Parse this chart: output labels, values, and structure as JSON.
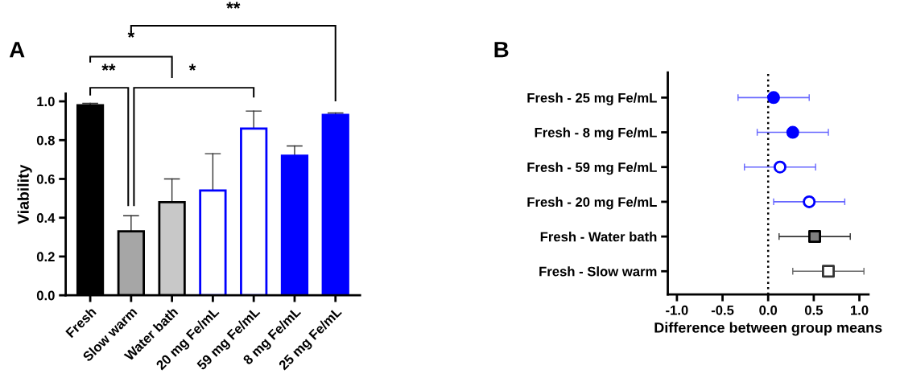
{
  "chart_data": [
    {
      "type": "bar",
      "title": "A",
      "ylabel": "Viability",
      "categories": [
        "Fresh",
        "Slow warm",
        "Water bath",
        "20 mg Fe/mL",
        "59 mg Fe/mL",
        "8 mg Fe/mL",
        "25 mg Fe/mL"
      ],
      "values": [
        0.98,
        0.33,
        0.48,
        0.54,
        0.86,
        0.72,
        0.93
      ],
      "errors": [
        [
          0.98,
          0.99
        ],
        [
          0.33,
          0.41
        ],
        [
          0.48,
          0.6
        ],
        [
          0.54,
          0.73
        ],
        [
          0.86,
          0.95
        ],
        [
          0.72,
          0.77
        ],
        [
          0.93,
          0.94
        ]
      ],
      "colors": [
        "#000000",
        "#a6a6a6",
        "#c8c8c8",
        "#ffffff",
        "#ffffff",
        "#0000ff",
        "#0000ff"
      ],
      "ylim": [
        0,
        1.04
      ],
      "yticks": [
        {
          "value": 0,
          "label": "0.0"
        },
        0.2,
        0.4,
        0.6,
        0.8,
        {
          "value": 1,
          "label": "1.0"
        }
      ],
      "grid": false,
      "legend": false,
      "annotations": [
        "**",
        "*",
        "*",
        "**"
      ]
    },
    {
      "type": "scatter",
      "title": "B",
      "orientation": "horizontal",
      "xlabel": "Difference between group means",
      "categories": [
        "Fresh - 25 mg Fe/mL",
        "Fresh - 8 mg Fe/mL",
        "Fresh - 59 mg Fe/mL",
        "Fresh - 20 mg Fe/mL",
        "Fresh - Water bath",
        "Fresh - Slow warm"
      ],
      "series": [
        {
          "color": "#0000ff",
          "marker": "circle",
          "values": [
            0.06,
            0.27,
            null,
            null,
            null,
            null
          ],
          "errors": [
            0.39,
            0.39,
            null,
            null,
            null,
            null
          ]
        },
        {
          "color": "#ffffff",
          "marker": "circle",
          "values": [
            null,
            null,
            0.13,
            0.45,
            null,
            null
          ],
          "errors": [
            null,
            null,
            0.39,
            0.39,
            null,
            null
          ]
        },
        {
          "color": "#808080",
          "marker": "square",
          "values": [
            null,
            null,
            null,
            null,
            0.51,
            null
          ],
          "errors": [
            null,
            null,
            null,
            null,
            0.39,
            null
          ]
        },
        {
          "color": "#ffffff",
          "marker": "square",
          "values": [
            null,
            null,
            null,
            null,
            null,
            0.66
          ],
          "errors": [
            null,
            null,
            null,
            null,
            null,
            0.39
          ]
        }
      ],
      "xlim": [
        -1.1,
        1.1
      ],
      "xticks": [
        {
          "value": -1,
          "label": "-1.0"
        },
        -0.5,
        {
          "value": 0,
          "label": "0.0"
        },
        0.5,
        {
          "value": 1,
          "label": "1.0"
        }
      ],
      "ref_lines": [
        {
          "axis": "x",
          "value": 0,
          "line_style": "dotted",
          "color": "#000000"
        }
      ],
      "grid": false,
      "legend": false
    }
  ]
}
